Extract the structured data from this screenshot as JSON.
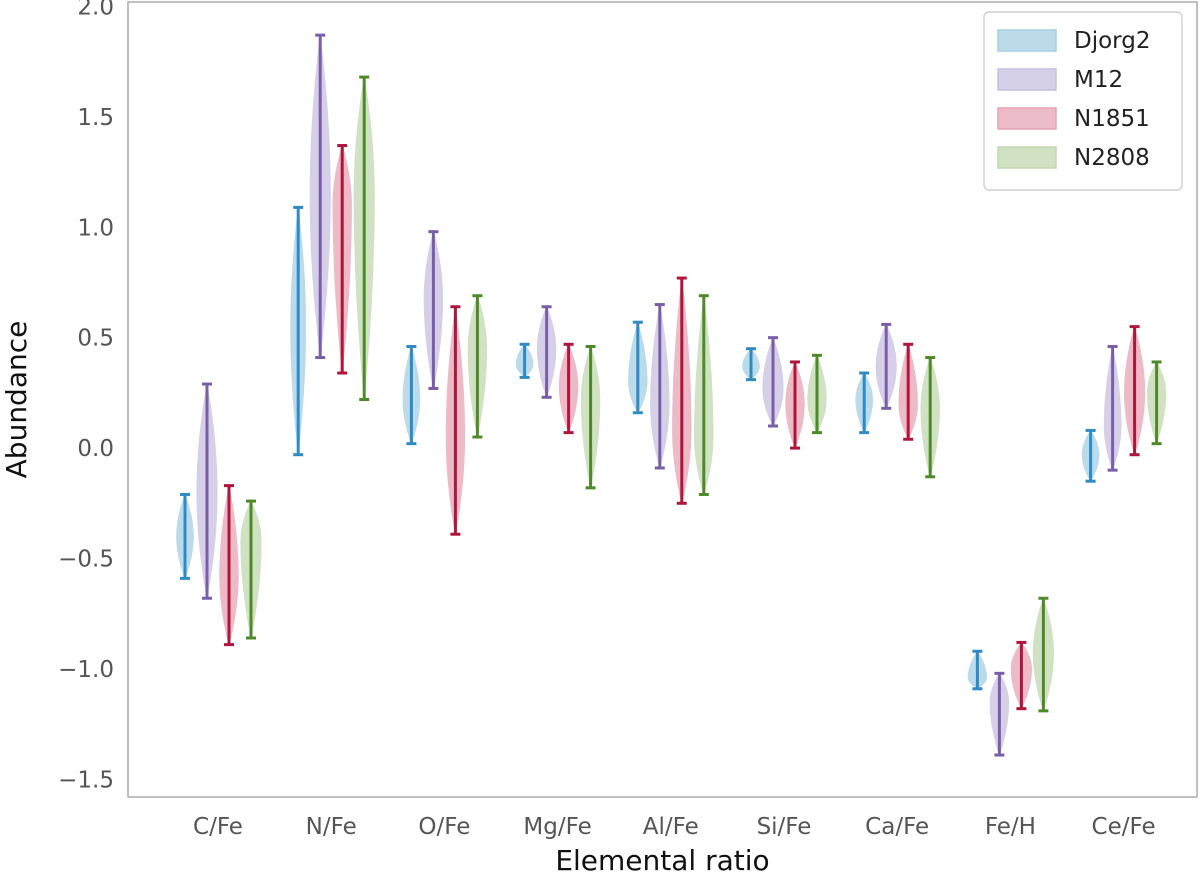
{
  "chart_data": {
    "type": "violin",
    "title": "",
    "xlabel": "Elemental ratio",
    "ylabel": "Abundance",
    "ylim": [
      -1.58,
      2.02
    ],
    "yticks": [
      -1.5,
      -1.0,
      -0.5,
      0.0,
      0.5,
      1.0,
      1.5,
      2.0
    ],
    "ytick_labels": [
      "−1.5",
      "−1.0",
      "−0.5",
      "0.0",
      "0.5",
      "1.0",
      "1.5",
      "2.0"
    ],
    "categories": [
      "C/Fe",
      "N/Fe",
      "O/Fe",
      "Mg/Fe",
      "Al/Fe",
      "Si/Fe",
      "Ca/Fe",
      "Fe/H",
      "Ce/Fe"
    ],
    "grid": false,
    "legend_position": "top-right",
    "series": [
      {
        "name": "Djorg2",
        "fill": "#a6cfe3",
        "line": "#2e8bc6",
        "ranges": [
          [
            -0.59,
            -0.21
          ],
          [
            -0.03,
            1.09
          ],
          [
            0.02,
            0.46
          ],
          [
            0.32,
            0.47
          ],
          [
            0.16,
            0.57
          ],
          [
            0.31,
            0.45
          ],
          [
            0.07,
            0.34
          ],
          [
            -1.09,
            -0.92
          ],
          [
            -0.15,
            0.08
          ]
        ],
        "peaks": [
          -0.4,
          0.55,
          0.22,
          0.38,
          0.3,
          0.37,
          0.22,
          -1.04,
          -0.03
        ],
        "widths": [
          0.5,
          0.45,
          0.5,
          0.5,
          0.55,
          0.5,
          0.5,
          0.55,
          0.5
        ]
      },
      {
        "name": "M12",
        "fill": "#c7bfe0",
        "line": "#7b5ea8",
        "ranges": [
          [
            -0.68,
            0.29
          ],
          [
            0.41,
            1.87
          ],
          [
            0.27,
            0.98
          ],
          [
            0.23,
            0.64
          ],
          [
            -0.09,
            0.65
          ],
          [
            0.1,
            0.5
          ],
          [
            0.18,
            0.56
          ],
          [
            -1.39,
            -1.02
          ],
          [
            -0.1,
            0.46
          ]
        ],
        "peaks": [
          -0.2,
          1.15,
          0.68,
          0.45,
          0.2,
          0.27,
          0.37,
          -1.15,
          0.1
        ],
        "widths": [
          0.6,
          0.6,
          0.55,
          0.55,
          0.55,
          0.6,
          0.6,
          0.55,
          0.5
        ]
      },
      {
        "name": "N1851",
        "fill": "#e7a3b4",
        "line": "#b0153c",
        "ranges": [
          [
            -0.89,
            -0.17
          ],
          [
            0.34,
            1.37
          ],
          [
            -0.39,
            0.64
          ],
          [
            0.07,
            0.47
          ],
          [
            -0.25,
            0.77
          ],
          [
            0.0,
            0.39
          ],
          [
            0.04,
            0.47
          ],
          [
            -1.18,
            -0.88
          ],
          [
            -0.03,
            0.55
          ]
        ],
        "peaks": [
          -0.58,
          1.1,
          0.05,
          0.28,
          0.08,
          0.2,
          0.2,
          -1.0,
          0.25
        ],
        "widths": [
          0.55,
          0.55,
          0.55,
          0.55,
          0.55,
          0.55,
          0.55,
          0.6,
          0.6
        ]
      },
      {
        "name": "N2808",
        "fill": "#c2d7b0",
        "line": "#4f8a2a",
        "ranges": [
          [
            -0.86,
            -0.24
          ],
          [
            0.22,
            1.68
          ],
          [
            0.05,
            0.69
          ],
          [
            -0.18,
            0.46
          ],
          [
            -0.21,
            0.69
          ],
          [
            0.07,
            0.42
          ],
          [
            -0.13,
            0.41
          ],
          [
            -1.19,
            -0.68
          ],
          [
            0.02,
            0.39
          ]
        ],
        "peaks": [
          -0.42,
          1.15,
          0.45,
          0.22,
          0.05,
          0.22,
          0.18,
          -0.93,
          0.25
        ],
        "widths": [
          0.6,
          0.6,
          0.55,
          0.55,
          0.55,
          0.55,
          0.55,
          0.6,
          0.55
        ]
      }
    ]
  }
}
